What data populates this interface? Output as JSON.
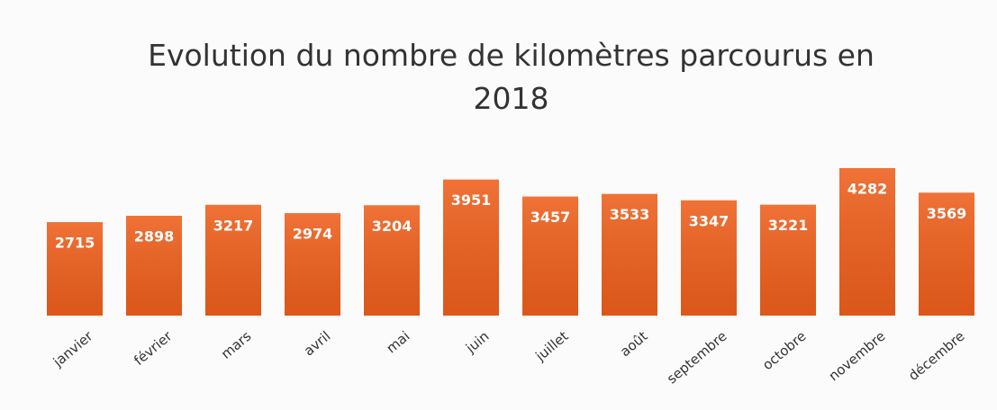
{
  "chart_data": {
    "type": "bar",
    "title": "Evolution du nombre de kilomètres parcourus en 2018",
    "categories": [
      "janvier",
      "février",
      "mars",
      "avril",
      "mai",
      "juin",
      "juillet",
      "août",
      "septembre",
      "octobre",
      "novembre",
      "décembre"
    ],
    "values": [
      2715,
      2898,
      3217,
      2974,
      3204,
      3951,
      3457,
      3533,
      3347,
      3221,
      4282,
      3569
    ],
    "color": "#ee5f1c"
  }
}
